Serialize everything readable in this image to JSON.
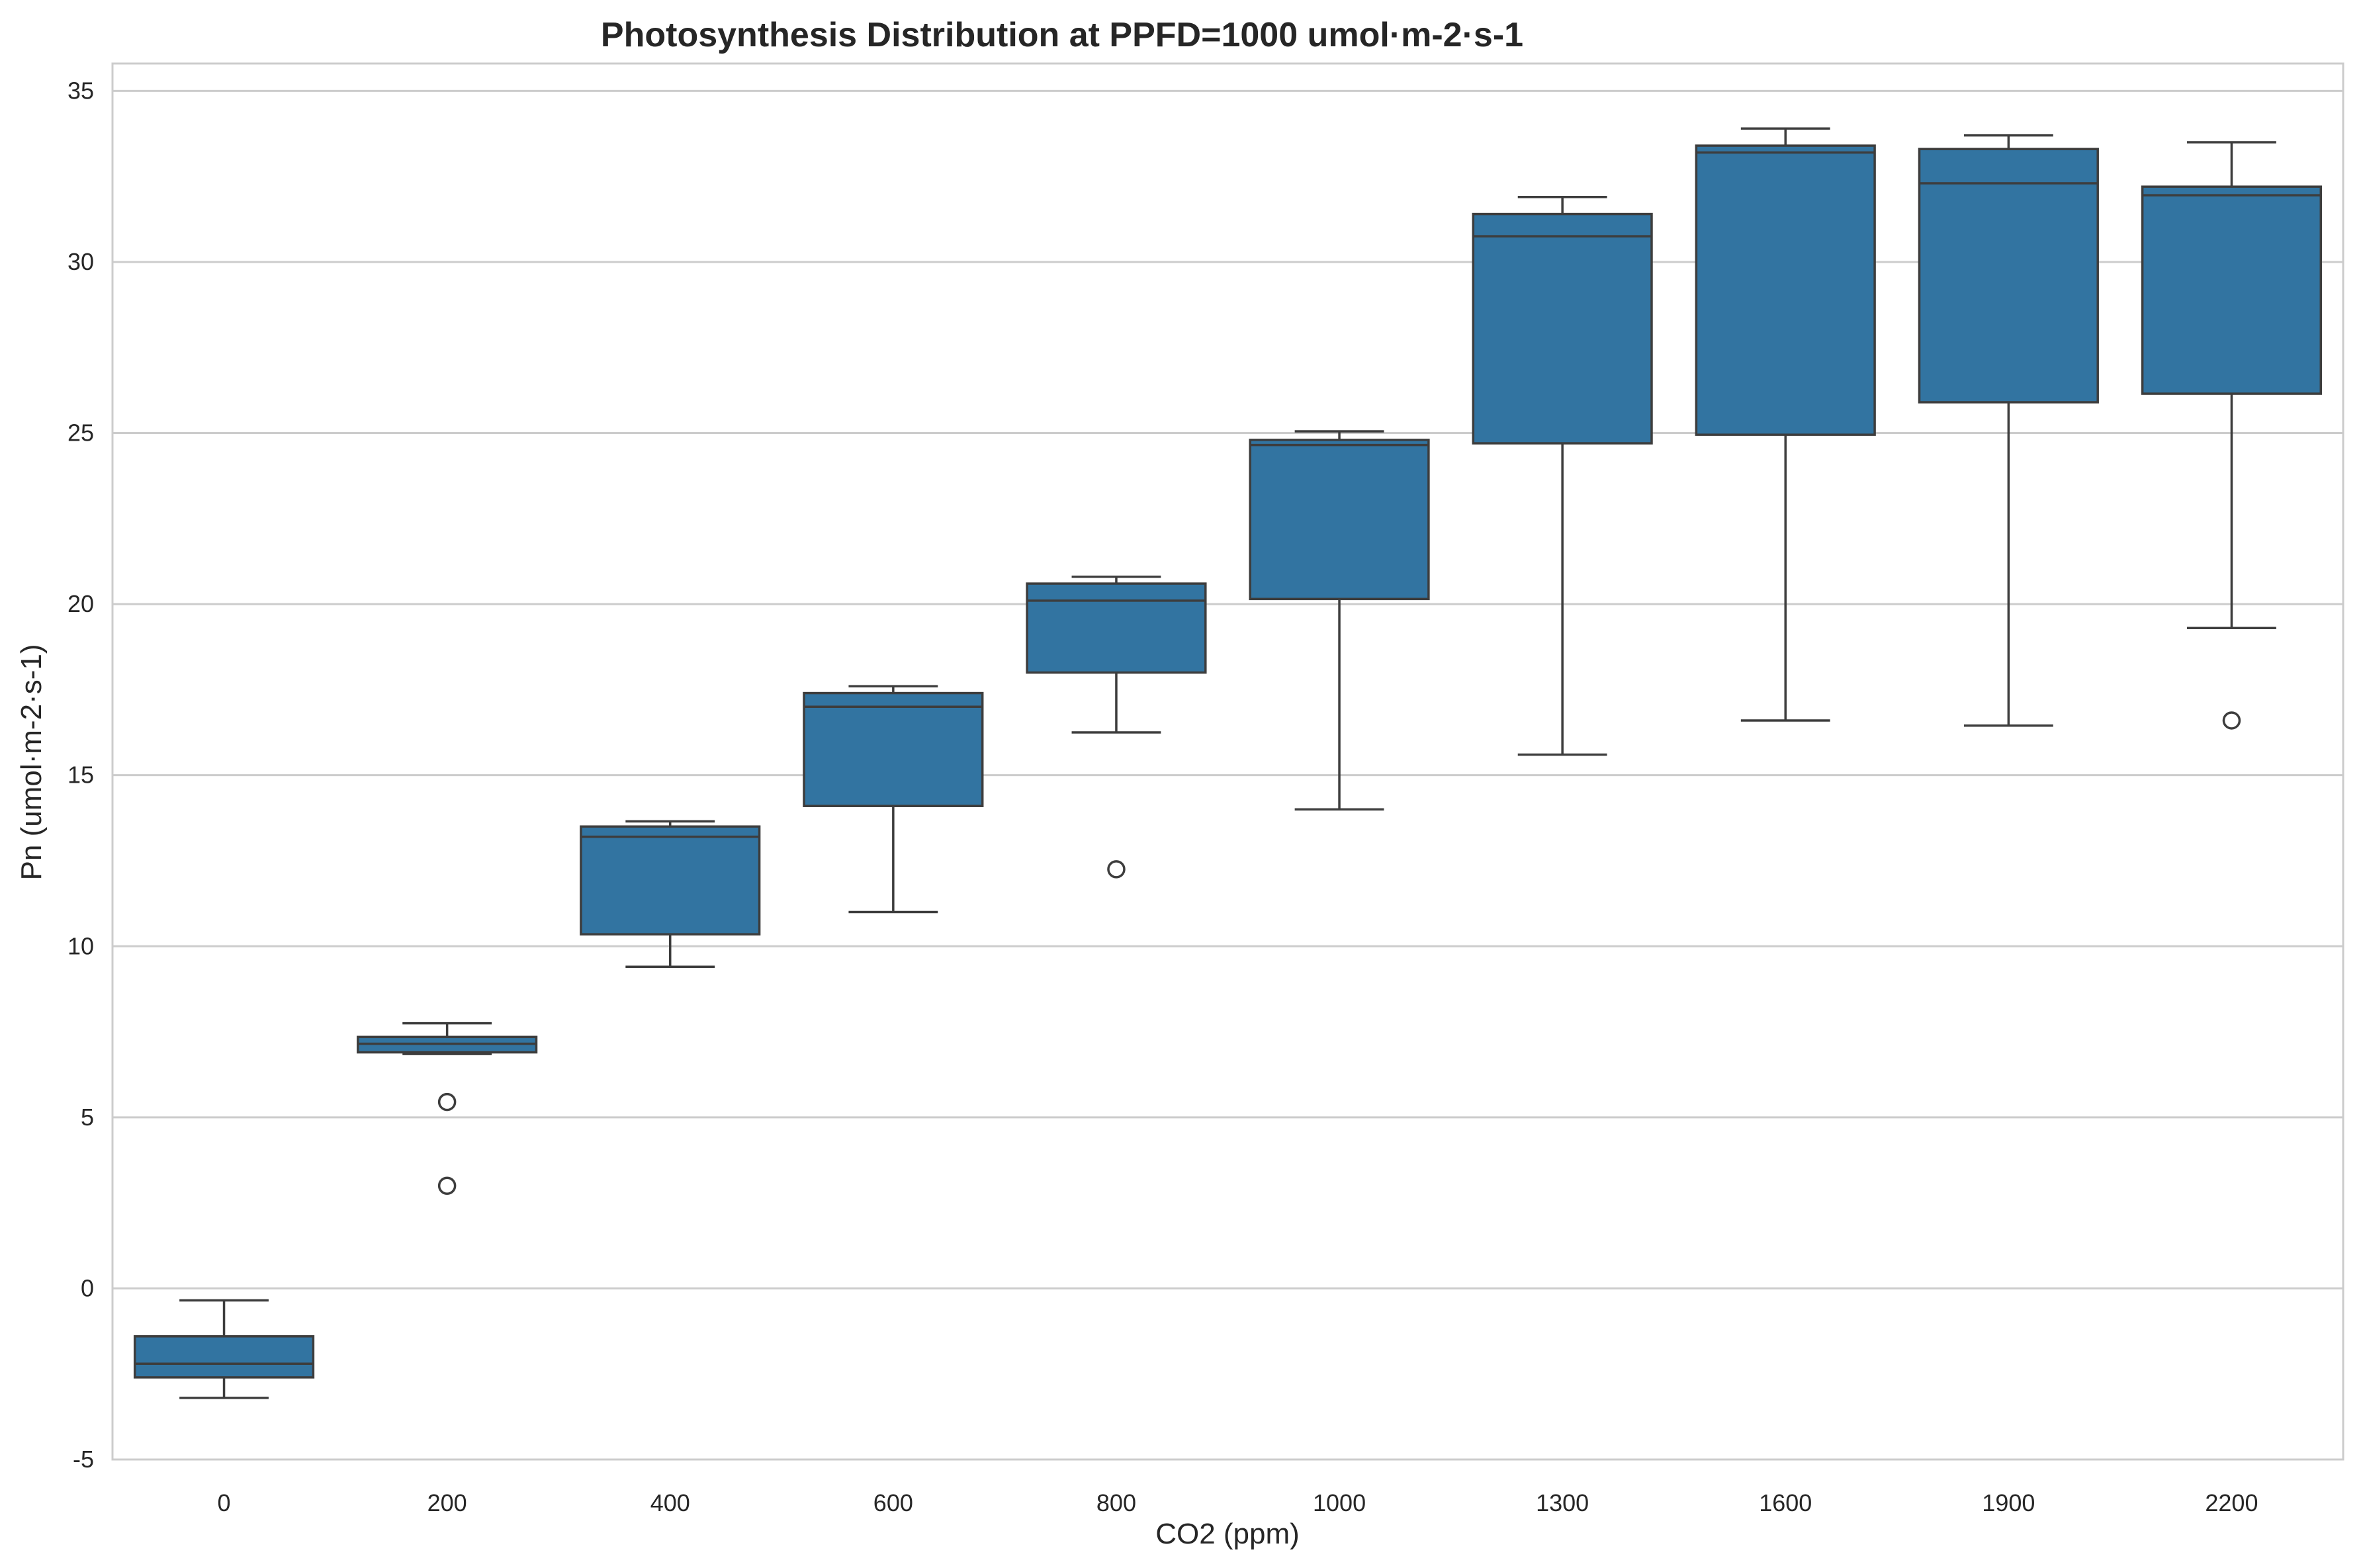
{
  "chart_data": {
    "type": "box",
    "title": "Photosynthesis Distribution at PPFD=1000 umol·m-2·s-1",
    "xlabel": "CO2 (ppm)",
    "ylabel": "Pn (umol·m-2·s-1)",
    "ylim": [
      -5,
      35.8
    ],
    "yticks": [
      -5,
      0,
      5,
      10,
      15,
      20,
      25,
      30,
      35
    ],
    "grid": "horizontal",
    "box_color": "#3274a1",
    "line_color": "#3d3d3d",
    "categories": [
      "0",
      "200",
      "400",
      "600",
      "800",
      "1000",
      "1300",
      "1600",
      "1900",
      "2200"
    ],
    "boxes": [
      {
        "category": "0",
        "whisker_low": -3.2,
        "q1": -2.6,
        "median": -2.2,
        "q3": -1.4,
        "whisker_high": -0.35,
        "outliers": []
      },
      {
        "category": "200",
        "whisker_low": 6.85,
        "q1": 6.9,
        "median": 7.15,
        "q3": 7.35,
        "whisker_high": 7.75,
        "outliers": [
          5.45,
          3.0
        ]
      },
      {
        "category": "400",
        "whisker_low": 9.4,
        "q1": 10.35,
        "median": 13.2,
        "q3": 13.5,
        "whisker_high": 13.65,
        "outliers": []
      },
      {
        "category": "600",
        "whisker_low": 11.0,
        "q1": 14.1,
        "median": 17.0,
        "q3": 17.4,
        "whisker_high": 17.6,
        "outliers": []
      },
      {
        "category": "800",
        "whisker_low": 16.25,
        "q1": 18.0,
        "median": 20.1,
        "q3": 20.6,
        "whisker_high": 20.8,
        "outliers": [
          12.25
        ]
      },
      {
        "category": "1000",
        "whisker_low": 14.0,
        "q1": 20.15,
        "median": 24.65,
        "q3": 24.8,
        "whisker_high": 25.05,
        "outliers": []
      },
      {
        "category": "1300",
        "whisker_low": 15.6,
        "q1": 24.7,
        "median": 30.75,
        "q3": 31.4,
        "whisker_high": 31.9,
        "outliers": []
      },
      {
        "category": "1600",
        "whisker_low": 16.6,
        "q1": 24.95,
        "median": 33.2,
        "q3": 33.4,
        "whisker_high": 33.9,
        "outliers": []
      },
      {
        "category": "1900",
        "whisker_low": 16.45,
        "q1": 25.9,
        "median": 32.3,
        "q3": 33.3,
        "whisker_high": 33.7,
        "outliers": []
      },
      {
        "category": "2200",
        "whisker_low": 19.3,
        "q1": 26.15,
        "median": 31.95,
        "q3": 32.2,
        "whisker_high": 33.5,
        "outliers": [
          16.6
        ]
      }
    ]
  }
}
